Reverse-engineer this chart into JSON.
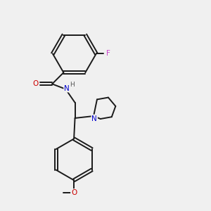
{
  "background_color": "#f0f0f0",
  "bond_color": "#1a1a1a",
  "atom_colors": {
    "F": "#cc44cc",
    "O": "#cc0000",
    "N": "#0000cc",
    "H": "#555555",
    "C": "#1a1a1a"
  },
  "figsize": [
    3.0,
    3.0
  ],
  "dpi": 100,
  "lw": 1.4,
  "fontsize": 7.5
}
